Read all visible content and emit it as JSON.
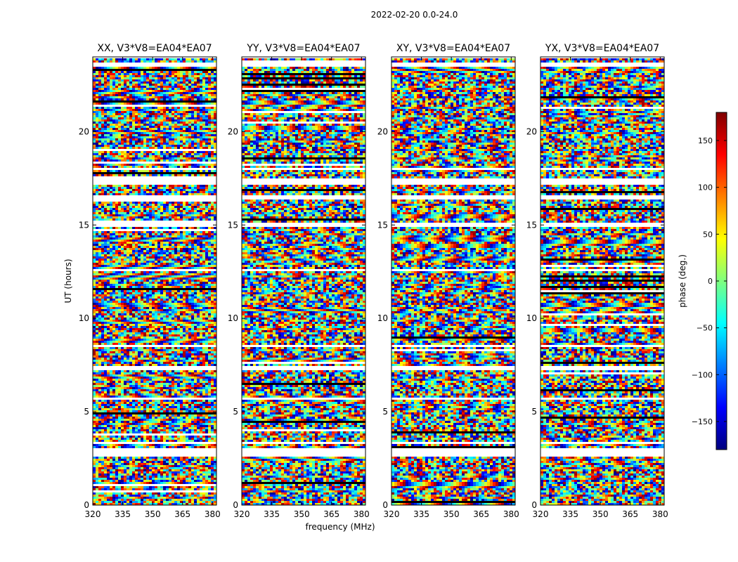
{
  "figure": {
    "suptitle": "2022-02-20 0.0-24.0"
  },
  "chart_data": {
    "type": "heatmap",
    "xlabel": "frequency (MHz)",
    "ylabel": "UT (hours)",
    "xlim": [
      320,
      382
    ],
    "ylim": [
      0,
      24
    ],
    "xticks": [
      320,
      335,
      350,
      365,
      380
    ],
    "yticks": [
      0,
      5,
      10,
      15,
      20
    ],
    "colormap": "jet",
    "colorbar": {
      "label": "phase (deg.)",
      "range": [
        -180,
        180
      ],
      "ticks": [
        150,
        100,
        50,
        0,
        -50,
        -100,
        -150
      ],
      "tick_labels": [
        "150",
        "100",
        "50",
        "0",
        "−50",
        "−100",
        "−150"
      ],
      "colors": [
        "#00007f",
        "#0000ff",
        "#007fff",
        "#00ffff",
        "#7fff7f",
        "#ffff00",
        "#ff7f00",
        "#ff0000",
        "#7f0000"
      ]
    },
    "panels": [
      {
        "title": "XX, V3*V8=EA04*EA07",
        "pol": "XX"
      },
      {
        "title": "YY, V3*V8=EA04*EA07",
        "pol": "YY"
      },
      {
        "title": "XY, V3*V8=EA04*EA07",
        "pol": "XY"
      },
      {
        "title": "YX, V3*V8=EA04*EA07",
        "pol": "YX"
      }
    ],
    "flagged_ut_ranges": [
      [
        2.55,
        3.0
      ],
      [
        3.25,
        3.35
      ],
      [
        5.65,
        5.78
      ],
      [
        7.25,
        7.45
      ],
      [
        8.5,
        8.62
      ],
      [
        10.45,
        10.55
      ],
      [
        12.58,
        12.68
      ],
      [
        14.95,
        15.1
      ],
      [
        16.4,
        16.6
      ],
      [
        17.15,
        17.45
      ],
      [
        17.9,
        18.0
      ],
      [
        23.45,
        23.65
      ]
    ]
  }
}
